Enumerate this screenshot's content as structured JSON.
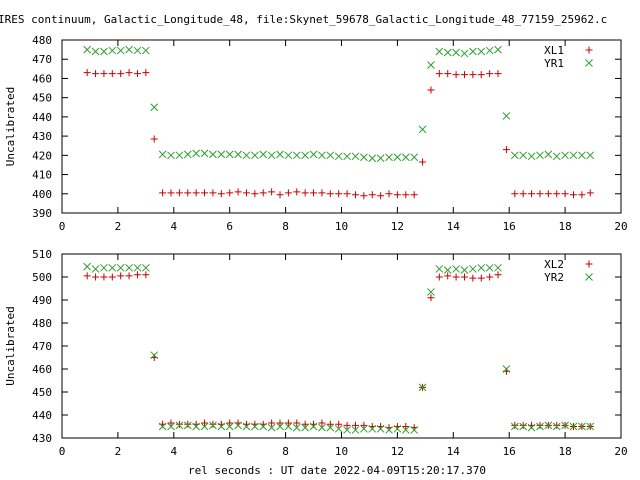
{
  "title": "IRES continuum, Galactic_Longitude_48, file:Skynet_59678_Galactic_Longitude_48_77159_25962.c",
  "xlabel": "rel seconds : UT date 2022-04-09T15:20:17.370",
  "colors": {
    "red": "#cc0000",
    "green": "#2ca02c"
  },
  "chart_data": [
    {
      "type": "scatter",
      "title": "IRES continuum, Galactic_Longitude_48, file:Skynet_59678_Galactic_Longitude_48_77159_25962.c",
      "xlabel": "",
      "ylabel": "Uncalibrated",
      "xlim": [
        0,
        20
      ],
      "ylim": [
        390,
        480
      ],
      "xticks": [
        0,
        2,
        4,
        6,
        8,
        10,
        12,
        14,
        16,
        18,
        20
      ],
      "yticks": [
        390,
        400,
        410,
        420,
        430,
        440,
        450,
        460,
        470,
        480
      ],
      "grid": false,
      "legend": "top-right",
      "series": [
        {
          "name": "XL1",
          "marker": "plus",
          "color": "#cc0000",
          "x": [
            0.9,
            1.2,
            1.5,
            1.8,
            2.1,
            2.4,
            2.7,
            3.0,
            3.3,
            3.6,
            3.9,
            4.2,
            4.5,
            4.8,
            5.1,
            5.4,
            5.7,
            6.0,
            6.3,
            6.6,
            6.9,
            7.2,
            7.5,
            7.8,
            8.1,
            8.4,
            8.7,
            9.0,
            9.3,
            9.6,
            9.9,
            10.2,
            10.5,
            10.8,
            11.1,
            11.4,
            11.7,
            12.0,
            12.3,
            12.6,
            12.9,
            13.2,
            13.5,
            13.8,
            14.1,
            14.4,
            14.7,
            15.0,
            15.3,
            15.6,
            15.9,
            16.2,
            16.5,
            16.8,
            17.1,
            17.4,
            17.7,
            18.0,
            18.3,
            18.6,
            18.9
          ],
          "y": [
            463,
            462.5,
            462.5,
            462.5,
            462.5,
            463,
            462.5,
            463,
            428.5,
            400.5,
            400.5,
            400.5,
            400.5,
            400.5,
            400.5,
            400.5,
            400,
            400.5,
            401,
            400.5,
            400,
            400.5,
            401,
            399.5,
            400.5,
            401,
            400.5,
            400.5,
            400.5,
            400,
            400,
            400,
            399.5,
            399,
            399.5,
            399,
            400,
            399.5,
            399.5,
            399.5,
            416.5,
            454,
            462.5,
            462.5,
            462,
            462,
            462,
            462,
            462.5,
            462.5,
            423,
            400,
            400,
            400,
            400,
            400,
            400,
            400,
            399.5,
            399.5,
            400.5
          ]
        },
        {
          "name": "YR1",
          "marker": "cross",
          "color": "#2ca02c",
          "x": [
            0.9,
            1.2,
            1.5,
            1.8,
            2.1,
            2.4,
            2.7,
            3.0,
            3.3,
            3.6,
            3.9,
            4.2,
            4.5,
            4.8,
            5.1,
            5.4,
            5.7,
            6.0,
            6.3,
            6.6,
            6.9,
            7.2,
            7.5,
            7.8,
            8.1,
            8.4,
            8.7,
            9.0,
            9.3,
            9.6,
            9.9,
            10.2,
            10.5,
            10.8,
            11.1,
            11.4,
            11.7,
            12.0,
            12.3,
            12.6,
            12.9,
            13.2,
            13.5,
            13.8,
            14.1,
            14.4,
            14.7,
            15.0,
            15.3,
            15.6,
            15.9,
            16.2,
            16.5,
            16.8,
            17.1,
            17.4,
            17.7,
            18.0,
            18.3,
            18.6,
            18.9
          ],
          "y": [
            475,
            474,
            474,
            474.5,
            474.5,
            475,
            474.5,
            474.5,
            445,
            420.5,
            420,
            420,
            420.5,
            421,
            421,
            420.5,
            420.5,
            420.5,
            420.5,
            420,
            420,
            420.5,
            420,
            420.5,
            420,
            420,
            420,
            420.5,
            420,
            420,
            419.5,
            419.5,
            419.5,
            419,
            418.5,
            418.5,
            419,
            419,
            419,
            419,
            433.5,
            467,
            474,
            473.5,
            473.5,
            473,
            474,
            474,
            474.5,
            475,
            440.5,
            420,
            420,
            419.5,
            420,
            420.5,
            419.5,
            420,
            420,
            420,
            420
          ]
        }
      ]
    },
    {
      "type": "scatter",
      "title": "",
      "xlabel": "rel seconds : UT date 2022-04-09T15:20:17.370",
      "ylabel": "Uncalibrated",
      "xlim": [
        0,
        20
      ],
      "ylim": [
        430,
        510
      ],
      "xticks": [
        0,
        2,
        4,
        6,
        8,
        10,
        12,
        14,
        16,
        18,
        20
      ],
      "yticks": [
        430,
        440,
        450,
        460,
        470,
        480,
        490,
        500,
        510
      ],
      "grid": false,
      "legend": "top-right",
      "series": [
        {
          "name": "XL2",
          "marker": "plus",
          "color": "#cc0000",
          "x": [
            0.9,
            1.2,
            1.5,
            1.8,
            2.1,
            2.4,
            2.7,
            3.0,
            3.3,
            3.6,
            3.9,
            4.2,
            4.5,
            4.8,
            5.1,
            5.4,
            5.7,
            6.0,
            6.3,
            6.6,
            6.9,
            7.2,
            7.5,
            7.8,
            8.1,
            8.4,
            8.7,
            9.0,
            9.3,
            9.6,
            9.9,
            10.2,
            10.5,
            10.8,
            11.1,
            11.4,
            11.7,
            12.0,
            12.3,
            12.6,
            12.9,
            13.2,
            13.5,
            13.8,
            14.1,
            14.4,
            14.7,
            15.0,
            15.3,
            15.6,
            15.9,
            16.2,
            16.5,
            16.8,
            17.1,
            17.4,
            17.7,
            18.0,
            18.3,
            18.6,
            18.9
          ],
          "y": [
            500.5,
            500,
            500,
            500,
            500.5,
            500.5,
            501,
            501,
            465,
            436,
            436.5,
            436,
            436,
            436,
            436.5,
            436,
            436,
            436.5,
            436.5,
            436,
            436,
            436,
            436.5,
            436.5,
            436.5,
            436.5,
            436,
            436,
            436.5,
            436,
            436,
            435.5,
            435.5,
            435.5,
            435,
            435,
            434.5,
            435,
            435,
            434.5,
            452,
            491,
            500,
            500.5,
            500,
            500,
            499.5,
            499.5,
            500,
            501,
            459,
            435.5,
            435.5,
            435.5,
            435.5,
            435.5,
            435.5,
            435.5,
            435,
            435,
            435
          ]
        },
        {
          "name": "YR2",
          "marker": "cross",
          "color": "#2ca02c",
          "x": [
            0.9,
            1.2,
            1.5,
            1.8,
            2.1,
            2.4,
            2.7,
            3.0,
            3.3,
            3.6,
            3.9,
            4.2,
            4.5,
            4.8,
            5.1,
            5.4,
            5.7,
            6.0,
            6.3,
            6.6,
            6.9,
            7.2,
            7.5,
            7.8,
            8.1,
            8.4,
            8.7,
            9.0,
            9.3,
            9.6,
            9.9,
            10.2,
            10.5,
            10.8,
            11.1,
            11.4,
            11.7,
            12.0,
            12.3,
            12.6,
            12.9,
            13.2,
            13.5,
            13.8,
            14.1,
            14.4,
            14.7,
            15.0,
            15.3,
            15.6,
            15.9,
            16.2,
            16.5,
            16.8,
            17.1,
            17.4,
            17.7,
            18.0,
            18.3,
            18.6,
            18.9
          ],
          "y": [
            504.5,
            503.5,
            504,
            504,
            504,
            504,
            504,
            504,
            466,
            435,
            435,
            435.5,
            435.5,
            435,
            435,
            435.5,
            435,
            435,
            435.5,
            435,
            435,
            435,
            434.5,
            435,
            435,
            434.5,
            434.5,
            435,
            434.5,
            434.5,
            434,
            433.5,
            433.5,
            434,
            434,
            434,
            433.5,
            434,
            433.5,
            433.5,
            452,
            493.5,
            503.5,
            503,
            503.5,
            503,
            503.5,
            504,
            504,
            504,
            460,
            435,
            435,
            434.5,
            435,
            435.5,
            435,
            435.5,
            435,
            435,
            435
          ]
        }
      ]
    }
  ]
}
